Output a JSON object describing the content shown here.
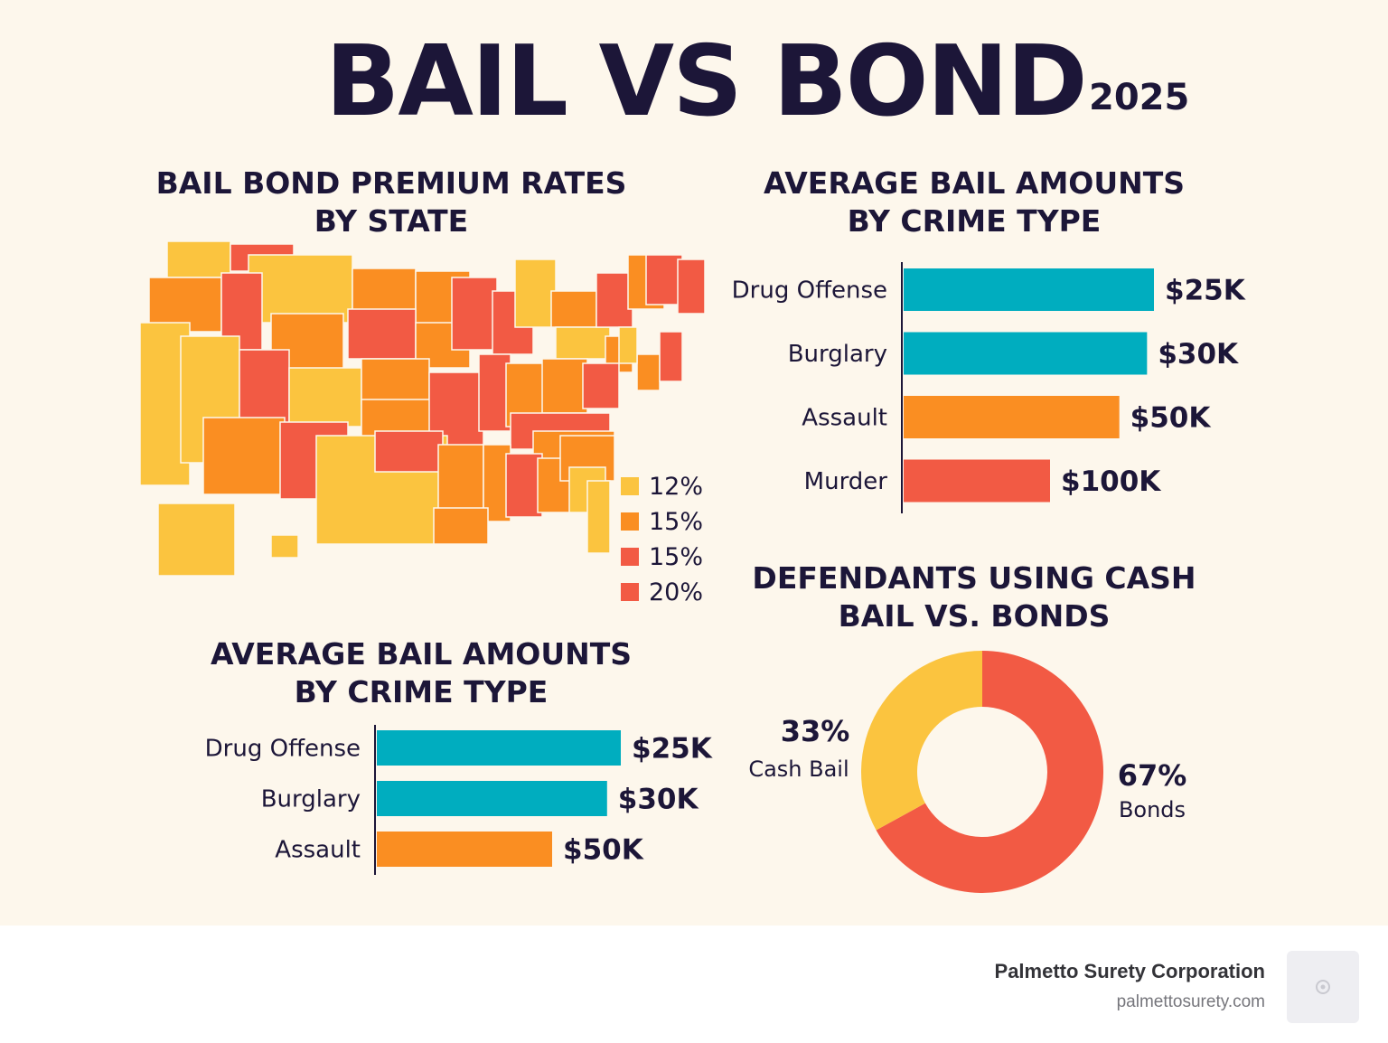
{
  "header": {
    "title": "BAIL VS BOND",
    "year": "2025"
  },
  "colors": {
    "yellow": "#fbc43f",
    "orange": "#fa8e22",
    "red": "#f25a44",
    "teal": "#00adbf",
    "navy": "#1c1638",
    "background": "#fdf7ec"
  },
  "map_section": {
    "title_line1": "BAIL BOND PREMIUM RATES",
    "title_line2": "BY STATE",
    "legend": [
      {
        "label": "12%",
        "color": "#fbc43f"
      },
      {
        "label": "15%",
        "color": "#fa8e22"
      },
      {
        "label": "15%",
        "color": "#f25a44"
      },
      {
        "label": "20%",
        "color": "#f25a44"
      }
    ]
  },
  "bars_top": {
    "title_line1": "AVERAGE BAIL AMOUNTS",
    "title_line2": "BY CRIME TYPE"
  },
  "bars_bottom": {
    "title_line1": "AVERAGE BAIL AMOUNTS",
    "title_line2": "BY CRIME TYPE"
  },
  "donut_section": {
    "title_line1": "DEFENDANTS USING CASH",
    "title_line2": "BAIL VS. BONDS"
  },
  "chart_data": [
    {
      "type": "bar",
      "orientation": "horizontal",
      "title": "AVERAGE BAIL AMOUNTS BY CRIME TYPE",
      "categories": [
        "Drug Offense",
        "Burglary",
        "Assault",
        "Murder"
      ],
      "values": [
        25,
        30,
        50,
        100
      ],
      "value_labels": [
        "$25K",
        "$30K",
        "$50K",
        "$100K"
      ],
      "colors": [
        "#00adbf",
        "#00adbf",
        "#fa8e22",
        "#f25a44"
      ]
    },
    {
      "type": "bar",
      "orientation": "horizontal",
      "title": "AVERAGE BAIL AMOUNTS BY CRIME TYPE",
      "categories": [
        "Drug Offense",
        "Burglary",
        "Assault"
      ],
      "values": [
        25,
        30,
        50
      ],
      "value_labels": [
        "$25K",
        "$30K",
        "$50K"
      ],
      "colors": [
        "#00adbf",
        "#00adbf",
        "#fa8e22"
      ]
    },
    {
      "type": "pie",
      "title": "DEFENDANTS USING CASH BAIL VS. BONDS",
      "slices": [
        {
          "label": "Bonds",
          "value": 67,
          "value_label": "67%",
          "color": "#f25a44"
        },
        {
          "label": "Cash Bail",
          "value": 33,
          "value_label": "33%",
          "color": "#fbc43f"
        }
      ]
    }
  ],
  "footer": {
    "company": "Palmetto Surety Corporation",
    "url": "palmettosurety.com"
  }
}
